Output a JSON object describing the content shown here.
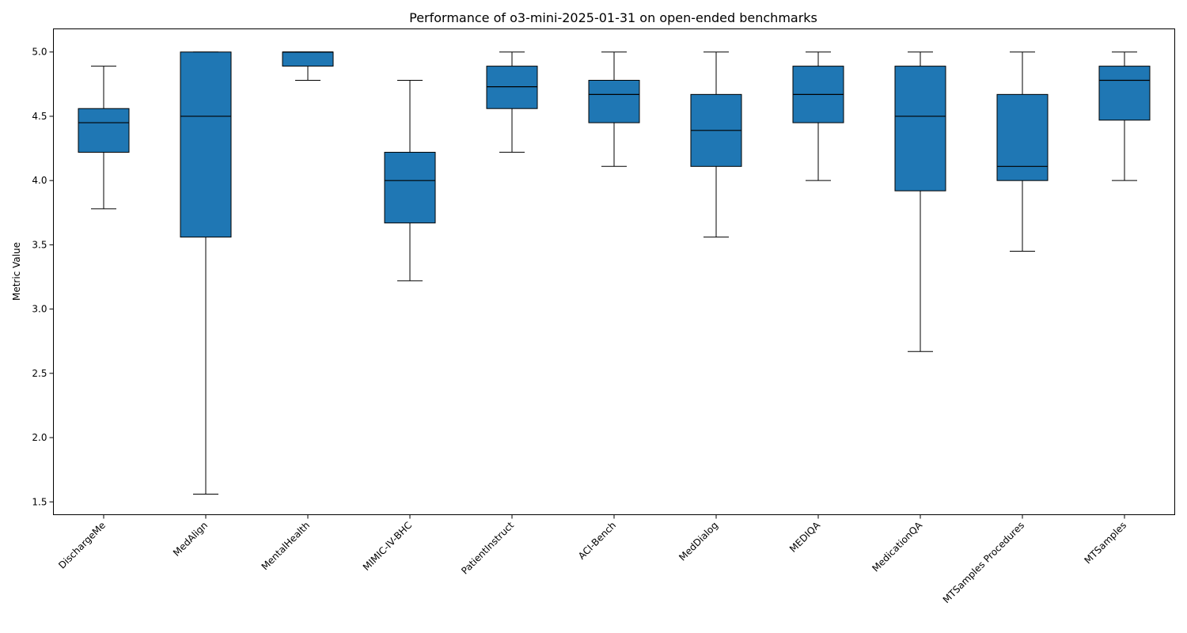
{
  "colors": {
    "box_fill": "#1f77b4",
    "line": "#000000",
    "background": "#ffffff"
  },
  "chart_data": {
    "type": "box",
    "title": "Performance of o3-mini-2025-01-31 on open-ended benchmarks",
    "xlabel": "",
    "ylabel": "Metric Value",
    "ylim": [
      1.4,
      5.18
    ],
    "yticks": [
      1.5,
      2.0,
      2.5,
      3.0,
      3.5,
      4.0,
      4.5,
      5.0
    ],
    "ytick_labels": [
      "1.5",
      "2.0",
      "2.5",
      "3.0",
      "3.5",
      "4.0",
      "4.5",
      "5.0"
    ],
    "grid": false,
    "legend": "none",
    "categories": [
      "DischargeMe",
      "MedAlign",
      "MentalHealth",
      "MIMIC-IV-BHC",
      "PatientInstruct",
      "ACI-Bench",
      "MedDialog",
      "MEDIQA",
      "MedicationQA",
      "MTSamples Procedures",
      "MTSamples"
    ],
    "boxes": [
      {
        "whisker_low": 3.78,
        "q1": 4.22,
        "median": 4.45,
        "q3": 4.56,
        "whisker_high": 4.89
      },
      {
        "whisker_low": 1.56,
        "q1": 3.56,
        "median": 4.5,
        "q3": 5.0,
        "whisker_high": 5.0
      },
      {
        "whisker_low": 4.78,
        "q1": 4.89,
        "median": 5.0,
        "q3": 5.0,
        "whisker_high": 5.0
      },
      {
        "whisker_low": 3.22,
        "q1": 3.67,
        "median": 4.0,
        "q3": 4.22,
        "whisker_high": 4.78
      },
      {
        "whisker_low": 4.22,
        "q1": 4.56,
        "median": 4.73,
        "q3": 4.89,
        "whisker_high": 5.0
      },
      {
        "whisker_low": 4.11,
        "q1": 4.45,
        "median": 4.67,
        "q3": 4.78,
        "whisker_high": 5.0
      },
      {
        "whisker_low": 3.56,
        "q1": 4.11,
        "median": 4.39,
        "q3": 4.67,
        "whisker_high": 5.0
      },
      {
        "whisker_low": 4.0,
        "q1": 4.45,
        "median": 4.67,
        "q3": 4.89,
        "whisker_high": 5.0
      },
      {
        "whisker_low": 2.67,
        "q1": 3.92,
        "median": 4.5,
        "q3": 4.89,
        "whisker_high": 5.0
      },
      {
        "whisker_low": 3.45,
        "q1": 4.0,
        "median": 4.11,
        "q3": 4.67,
        "whisker_high": 5.0
      },
      {
        "whisker_low": 4.0,
        "q1": 4.47,
        "median": 4.78,
        "q3": 4.89,
        "whisker_high": 5.0
      }
    ]
  }
}
